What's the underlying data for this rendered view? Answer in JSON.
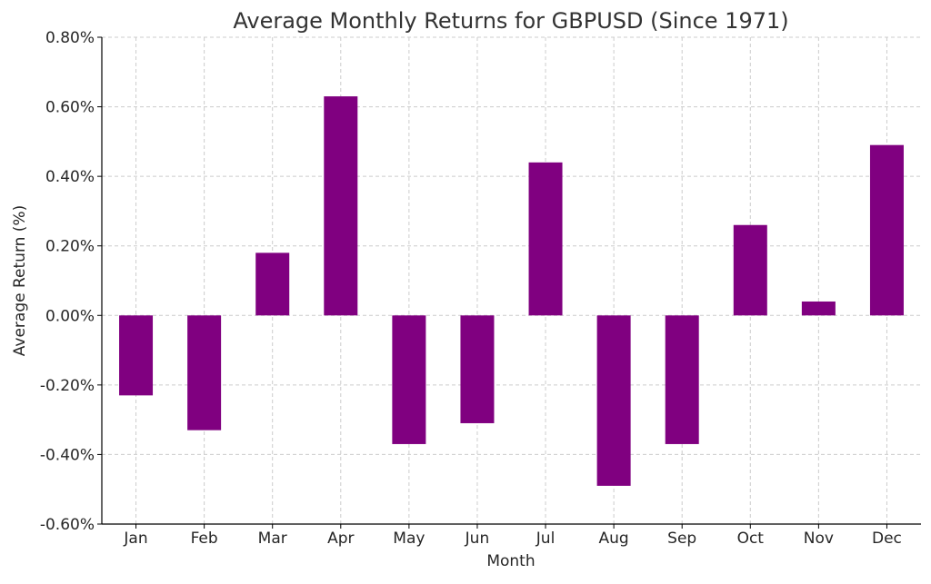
{
  "chart_data": {
    "type": "bar",
    "title": "Average Monthly Returns for GBPUSD (Since 1971)",
    "xlabel": "Month",
    "ylabel": "Average Return (%)",
    "categories": [
      "Jan",
      "Feb",
      "Mar",
      "Apr",
      "May",
      "Jun",
      "Jul",
      "Aug",
      "Sep",
      "Oct",
      "Nov",
      "Dec"
    ],
    "values": [
      -0.23,
      -0.33,
      0.18,
      0.63,
      -0.37,
      -0.31,
      0.44,
      -0.49,
      -0.37,
      0.26,
      0.04,
      0.49
    ],
    "ylim": [
      -0.6,
      0.8
    ],
    "yticks": [
      -0.6,
      -0.4,
      -0.2,
      0.0,
      0.2,
      0.4,
      0.6,
      0.8
    ],
    "ytick_labels": [
      "-0.60%",
      "-0.40%",
      "-0.20%",
      "0.00%",
      "0.20%",
      "0.40%",
      "0.60%",
      "0.80%"
    ],
    "grid": true,
    "bar_color": "#800080"
  }
}
